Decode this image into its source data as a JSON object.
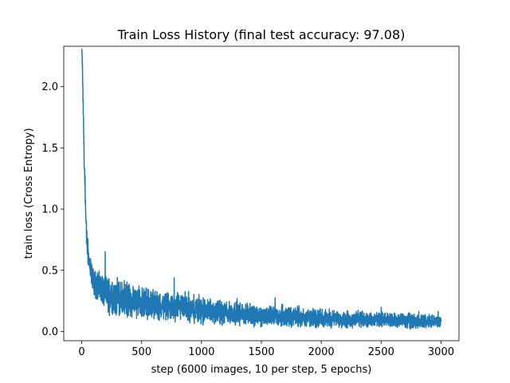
{
  "chart_data": {
    "type": "line",
    "title": "Train Loss History (final test accuracy: 97.08)",
    "xlabel": "step (6000 images, 10 per step, 5 epochs)",
    "ylabel": "train loss (Cross Entropy)",
    "xlim": [
      -150,
      3150
    ],
    "ylim": [
      -0.075,
      2.33
    ],
    "xticks": [
      0,
      500,
      1000,
      1500,
      2000,
      2500,
      3000
    ],
    "xtick_labels": [
      "0",
      "500",
      "1000",
      "1500",
      "2000",
      "2500",
      "3000"
    ],
    "yticks": [
      0.0,
      0.5,
      1.0,
      1.5,
      2.0
    ],
    "ytick_labels": [
      "0.0",
      "0.5",
      "1.0",
      "1.5",
      "2.0"
    ],
    "grid": false,
    "series": [
      {
        "color": "#1f77b4",
        "x": [
          0,
          5,
          10,
          15,
          20,
          25,
          30,
          35,
          40,
          45,
          50,
          60,
          70,
          80,
          90,
          100,
          150,
          200,
          300,
          400,
          500,
          600,
          700,
          800,
          900,
          1000,
          1100,
          1200,
          1300,
          1400,
          1500,
          1600,
          1700,
          1800,
          1900,
          2000,
          2100,
          2200,
          2300,
          2400,
          2500,
          2600,
          2700,
          2800,
          2900,
          3000
        ],
        "y": [
          2.31,
          2.2,
          1.95,
          1.7,
          1.45,
          1.25,
          1.05,
          0.9,
          0.8,
          0.72,
          0.66,
          0.58,
          0.52,
          0.48,
          0.44,
          0.41,
          0.35,
          0.31,
          0.28,
          0.25,
          0.23,
          0.22,
          0.2,
          0.19,
          0.18,
          0.17,
          0.16,
          0.15,
          0.145,
          0.14,
          0.13,
          0.125,
          0.12,
          0.115,
          0.11,
          0.11,
          0.105,
          0.1,
          0.1,
          0.095,
          0.09,
          0.09,
          0.085,
          0.085,
          0.08,
          0.08
        ],
        "noise_amplitude": [
          0.02,
          0.05,
          0.08,
          0.09,
          0.1,
          0.1,
          0.1,
          0.1,
          0.1,
          0.1,
          0.1,
          0.1,
          0.1,
          0.1,
          0.1,
          0.1,
          0.14,
          0.15,
          0.15,
          0.14,
          0.13,
          0.12,
          0.12,
          0.12,
          0.11,
          0.11,
          0.1,
          0.1,
          0.09,
          0.09,
          0.09,
          0.085,
          0.08,
          0.08,
          0.075,
          0.075,
          0.07,
          0.07,
          0.07,
          0.065,
          0.065,
          0.06,
          0.06,
          0.06,
          0.055,
          0.055
        ]
      }
    ]
  }
}
